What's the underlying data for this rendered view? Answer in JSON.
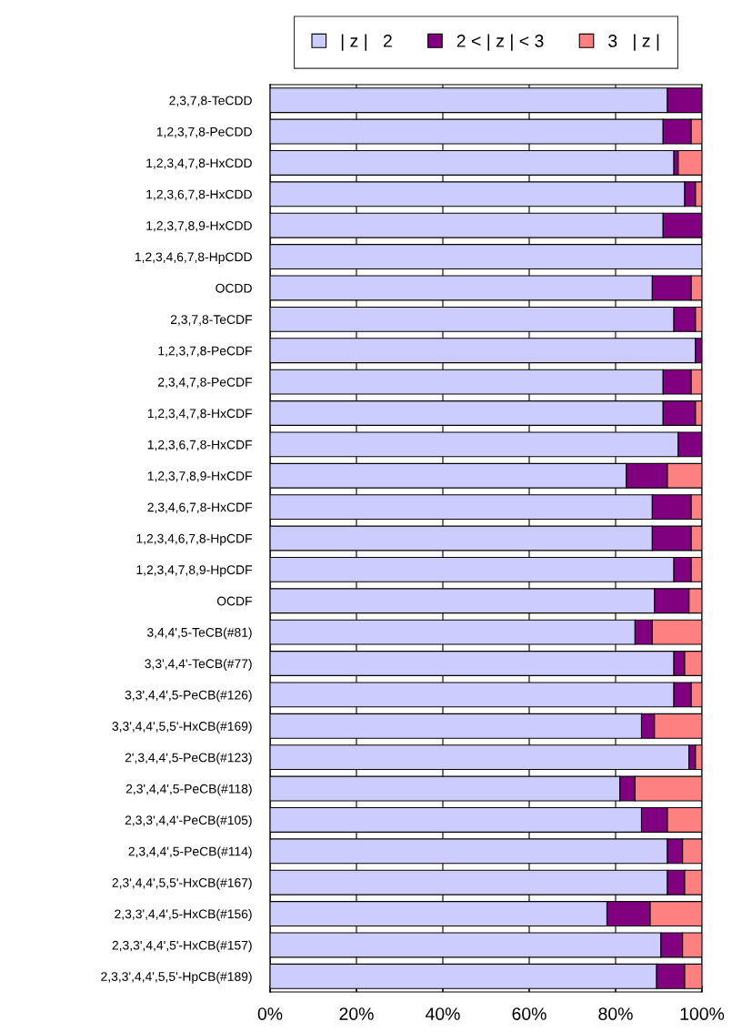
{
  "chart_data": {
    "type": "bar",
    "orientation": "horizontal",
    "stacked": true,
    "categories": [
      "2,3,7,8-TeCDD",
      "1,2,3,7,8-PeCDD",
      "1,2,3,4,7,8-HxCDD",
      "1,2,3,6,7,8-HxCDD",
      "1,2,3,7,8,9-HxCDD",
      "1,2,3,4,6,7,8-HpCDD",
      "OCDD",
      "2,3,7,8-TeCDF",
      "1,2,3,7,8-PeCDF",
      "2,3,4,7,8-PeCDF",
      "1,2,3,4,7,8-HxCDF",
      "1,2,3,6,7,8-HxCDF",
      "1,2,3,7,8,9-HxCDF",
      "2,3,4,6,7,8-HxCDF",
      "1,2,3,4,6,7,8-HpCDF",
      "1,2,3,4,7,8,9-HpCDF",
      "OCDF",
      "3,4,4',5-TeCB(#81)",
      "3,3',4,4'-TeCB(#77)",
      "3,3',4,4',5-PeCB(#126)",
      "3,3',4,4',5,5'-HxCB(#169)",
      "2',3,4,4',5-PeCB(#123)",
      "2,3',4,4',5-PeCB(#118)",
      "2,3,3',4,4'-PeCB(#105)",
      "2,3,4,4',5-PeCB(#114)",
      "2,3',4,4',5,5'-HxCB(#167)",
      "2,3,3',4,4',5-HxCB(#156)",
      "2,3,3',4,4',5'-HxCB(#157)",
      "2,3,3',4,4',5,5'-HpCB(#189)"
    ],
    "series": [
      {
        "name": "| z |   2",
        "color": "#ccccff",
        "values": [
          92,
          91,
          93.5,
          96,
          91,
          100,
          88.5,
          93.5,
          98.5,
          91,
          91,
          94.5,
          82.5,
          88.5,
          88.5,
          93.5,
          89,
          84.5,
          93.5,
          93.5,
          86,
          97,
          81,
          86,
          92,
          92,
          78,
          90.5,
          89.5
        ]
      },
      {
        "name": "2 < | z | < 3",
        "color": "#800080",
        "values": [
          8,
          6.5,
          1,
          2.5,
          9,
          null,
          9,
          5,
          1.5,
          6.5,
          7.5,
          5.5,
          9.5,
          9,
          9,
          4,
          8,
          4,
          2.5,
          4,
          3,
          1.5,
          3.5,
          6,
          3.5,
          4,
          10,
          5,
          6.5
        ]
      },
      {
        "name": "3   | z |",
        "color": "#ff8080",
        "values": [
          null,
          2.5,
          5.5,
          1.5,
          null,
          null,
          2.5,
          1.5,
          null,
          2.5,
          1.5,
          null,
          8,
          2.5,
          2.5,
          2.5,
          3,
          11.5,
          4,
          2.5,
          11,
          1.5,
          15.5,
          8,
          4.5,
          4,
          12,
          4.5,
          4
        ]
      }
    ],
    "xlim": [
      0,
      100
    ],
    "xticks": [
      {
        "value": 0,
        "label": "0%"
      },
      {
        "value": 20,
        "label": "20%"
      },
      {
        "value": 40,
        "label": "40%"
      },
      {
        "value": 60,
        "label": "60%"
      },
      {
        "value": 80,
        "label": "80%"
      },
      {
        "value": 100,
        "label": "100%"
      }
    ],
    "grid": "x",
    "legend": "top"
  }
}
